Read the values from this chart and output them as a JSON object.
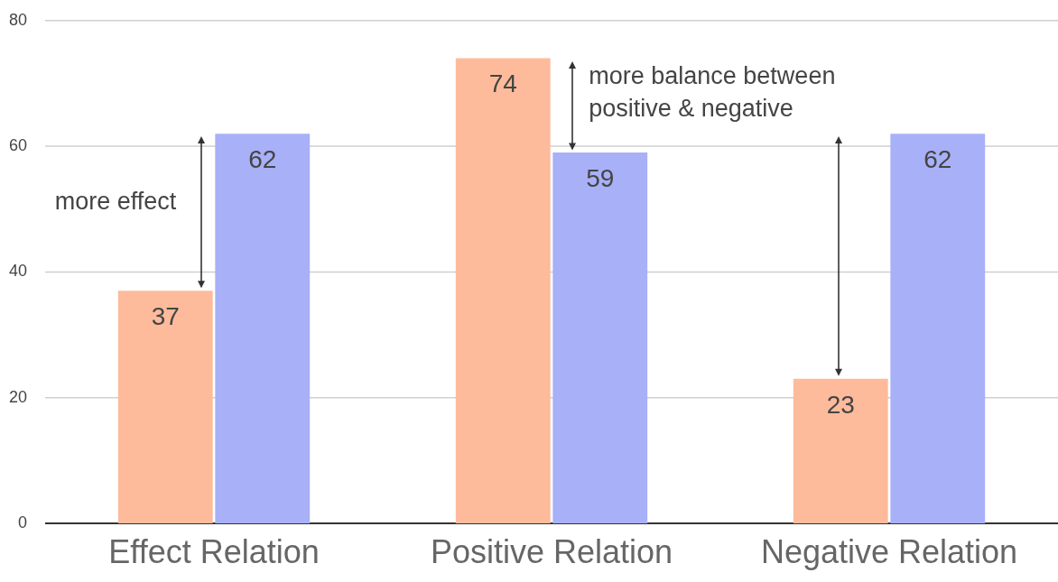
{
  "chart_data": {
    "type": "bar",
    "categories": [
      "Effect Relation",
      "Positive Relation",
      "Negative Relation"
    ],
    "series": [
      {
        "color": "#fdbb9b",
        "values": [
          37,
          74,
          23
        ]
      },
      {
        "color": "#a8b0f8",
        "values": [
          62,
          59,
          62
        ]
      }
    ],
    "ylim": [
      0,
      80
    ],
    "yticks": [
      0,
      20,
      40,
      60,
      80
    ],
    "grid": "y",
    "legend": false,
    "data_labels": true,
    "annotations": [
      {
        "text": "more effect",
        "x": "Effect Relation",
        "y": 51
      },
      {
        "text": "more balance between positive & negative",
        "x": "Positive Relation",
        "y": 71
      }
    ]
  }
}
